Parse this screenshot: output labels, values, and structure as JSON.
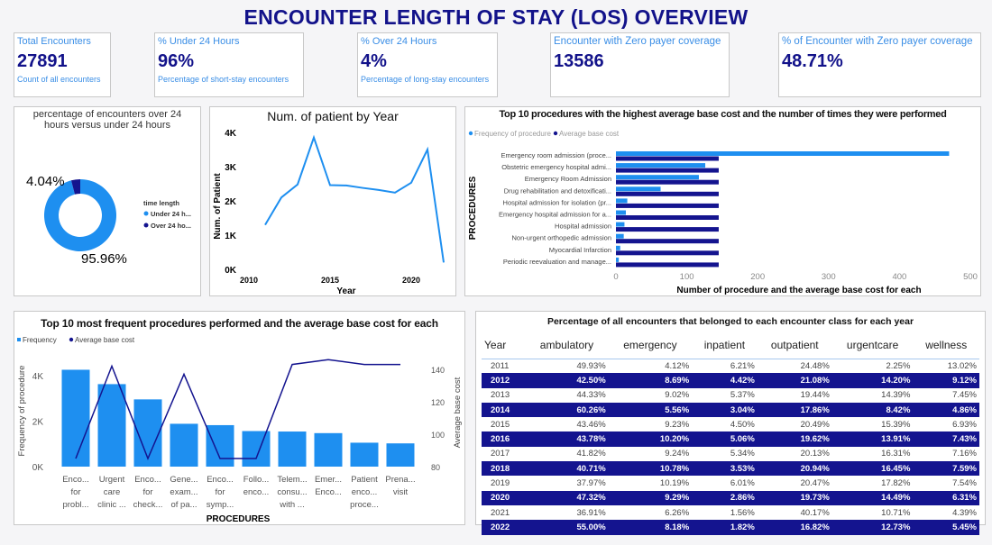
{
  "title": "ENCOUNTER LENGTH OF STAY (LOS) OVERVIEW",
  "kpis": [
    {
      "label": "Total Encounters",
      "value": "27891",
      "sub": "Count of all encounters"
    },
    {
      "label": "% Under 24 Hours",
      "value": "96%",
      "sub": "Percentage of short-stay encounters"
    },
    {
      "label": "% Over 24 Hours",
      "value": "4%",
      "sub": "Percentage of long-stay encounters"
    },
    {
      "label": "Encounter with Zero payer coverage",
      "value": "13586",
      "sub": ""
    },
    {
      "label": "% of Encounter with Zero payer coverage",
      "value": "48.71%",
      "sub": ""
    }
  ],
  "colors": {
    "light": "#1e8ff0",
    "dark": "#14148f",
    "title": "#12128a"
  },
  "chart_data": [
    {
      "type": "pie",
      "title": "percentage of encounters over 24 hours versus under 24 hours",
      "legend_title": "time length",
      "legend_position": "right",
      "categories": [
        "Under 24 h...",
        "Over 24 ho..."
      ],
      "values": [
        95.96,
        4.04
      ],
      "labels": [
        "95.96%",
        "4.04%"
      ]
    },
    {
      "type": "line",
      "title": "Num. of patient by Year",
      "xlabel": "Year",
      "ylabel": "Num. of Patient",
      "x": [
        2011,
        2012,
        2013,
        2014,
        2015,
        2016,
        2017,
        2018,
        2019,
        2020,
        2021,
        2022
      ],
      "values": [
        1300,
        2100,
        2480,
        3850,
        2460,
        2450,
        2380,
        2320,
        2240,
        2530,
        3500,
        200
      ],
      "xlim": [
        2010,
        2022
      ],
      "ylim": [
        0,
        4000
      ],
      "xticks": [
        "2010",
        "2015",
        "2020"
      ],
      "yticks": [
        "0K",
        "1K",
        "2K",
        "3K",
        "4K"
      ]
    },
    {
      "type": "bar",
      "orientation": "horizontal",
      "title": "Top 10 procedures with the highest average base cost and the number of times they were performed",
      "xlabel": "Number of procedure and the average base cost for each",
      "ylabel": "PROCEDURES",
      "legend_position": "top-left",
      "categories": [
        "Emergency room admission (proce...",
        "Obstetric emergency hospital admi...",
        "Emergency Room Admission",
        "Drug rehabilitation and detoxificati...",
        "Hospital admission for isolation (pr...",
        "Emergency hospital admission for a...",
        "Hospital admission",
        "Non-urgent orthopedic admission",
        "Myocardial Infarction",
        "Periodic reevaluation and manage..."
      ],
      "series": [
        {
          "name": "Frequency of procedure",
          "values": [
            470,
            126,
            117,
            63,
            16,
            14,
            12,
            11,
            6,
            4
          ]
        },
        {
          "name": "Average base cost",
          "values": [
            145,
            145,
            145,
            145,
            145,
            145,
            145,
            145,
            145,
            145
          ]
        }
      ],
      "xlim": [
        0,
        500
      ],
      "xticks": [
        "0",
        "100",
        "200",
        "300",
        "400",
        "500"
      ]
    },
    {
      "type": "bar",
      "title": "Top 10 most frequent procedures performed and the average base cost for each",
      "xlabel": "PROCEDURES",
      "ylabel": "Frequency of procedure",
      "y2label": "Average base cost",
      "legend_position": "top-left",
      "categories": [
        [
          "Enco...",
          "for",
          "probl..."
        ],
        [
          "Urgent",
          "care",
          "clinic ..."
        ],
        [
          "Enco...",
          "for",
          "check..."
        ],
        [
          "Gene...",
          "exam...",
          "of pa..."
        ],
        [
          "Enco...",
          "for",
          "symp..."
        ],
        [
          "Follo...",
          "enco..."
        ],
        [
          "Telem...",
          "consu...",
          "with ..."
        ],
        [
          "Emer...",
          "Enco..."
        ],
        [
          "Patient",
          "enco...",
          "proce..."
        ],
        [
          "Prena...",
          "visit"
        ]
      ],
      "series": [
        {
          "name": "Frequency",
          "type": "bar",
          "values": [
            4250,
            3620,
            2950,
            1880,
            1820,
            1560,
            1540,
            1470,
            1050,
            1020
          ]
        },
        {
          "name": "Average base cost",
          "type": "line",
          "values": [
            85,
            142,
            85,
            137,
            85,
            85,
            143,
            146,
            143,
            143
          ]
        }
      ],
      "ylim": [
        0,
        4200
      ],
      "y2lim": [
        80,
        150
      ],
      "yticks": [
        "0K",
        "2K",
        "4K"
      ],
      "y2ticks": [
        "80",
        "100",
        "120",
        "140"
      ]
    }
  ],
  "table": {
    "title": "Percentage of all encounters that belonged to each encounter class for each year",
    "columns": [
      "Year",
      "ambulatory",
      "emergency",
      "inpatient",
      "outpatient",
      "urgentcare",
      "wellness"
    ],
    "rows": [
      [
        "2011",
        "49.93%",
        "4.12%",
        "6.21%",
        "24.48%",
        "2.25%",
        "13.02%"
      ],
      [
        "2012",
        "42.50%",
        "8.69%",
        "4.42%",
        "21.08%",
        "14.20%",
        "9.12%"
      ],
      [
        "2013",
        "44.33%",
        "9.02%",
        "5.37%",
        "19.44%",
        "14.39%",
        "7.45%"
      ],
      [
        "2014",
        "60.26%",
        "5.56%",
        "3.04%",
        "17.86%",
        "8.42%",
        "4.86%"
      ],
      [
        "2015",
        "43.46%",
        "9.23%",
        "4.50%",
        "20.49%",
        "15.39%",
        "6.93%"
      ],
      [
        "2016",
        "43.78%",
        "10.20%",
        "5.06%",
        "19.62%",
        "13.91%",
        "7.43%"
      ],
      [
        "2017",
        "41.82%",
        "9.24%",
        "5.34%",
        "20.13%",
        "16.31%",
        "7.16%"
      ],
      [
        "2018",
        "40.71%",
        "10.78%",
        "3.53%",
        "20.94%",
        "16.45%",
        "7.59%"
      ],
      [
        "2019",
        "37.97%",
        "10.19%",
        "6.01%",
        "20.47%",
        "17.82%",
        "7.54%"
      ],
      [
        "2020",
        "47.32%",
        "9.29%",
        "2.86%",
        "19.73%",
        "14.49%",
        "6.31%"
      ],
      [
        "2021",
        "36.91%",
        "6.26%",
        "1.56%",
        "40.17%",
        "10.71%",
        "4.39%"
      ],
      [
        "2022",
        "55.00%",
        "8.18%",
        "1.82%",
        "16.82%",
        "12.73%",
        "5.45%"
      ]
    ]
  }
}
